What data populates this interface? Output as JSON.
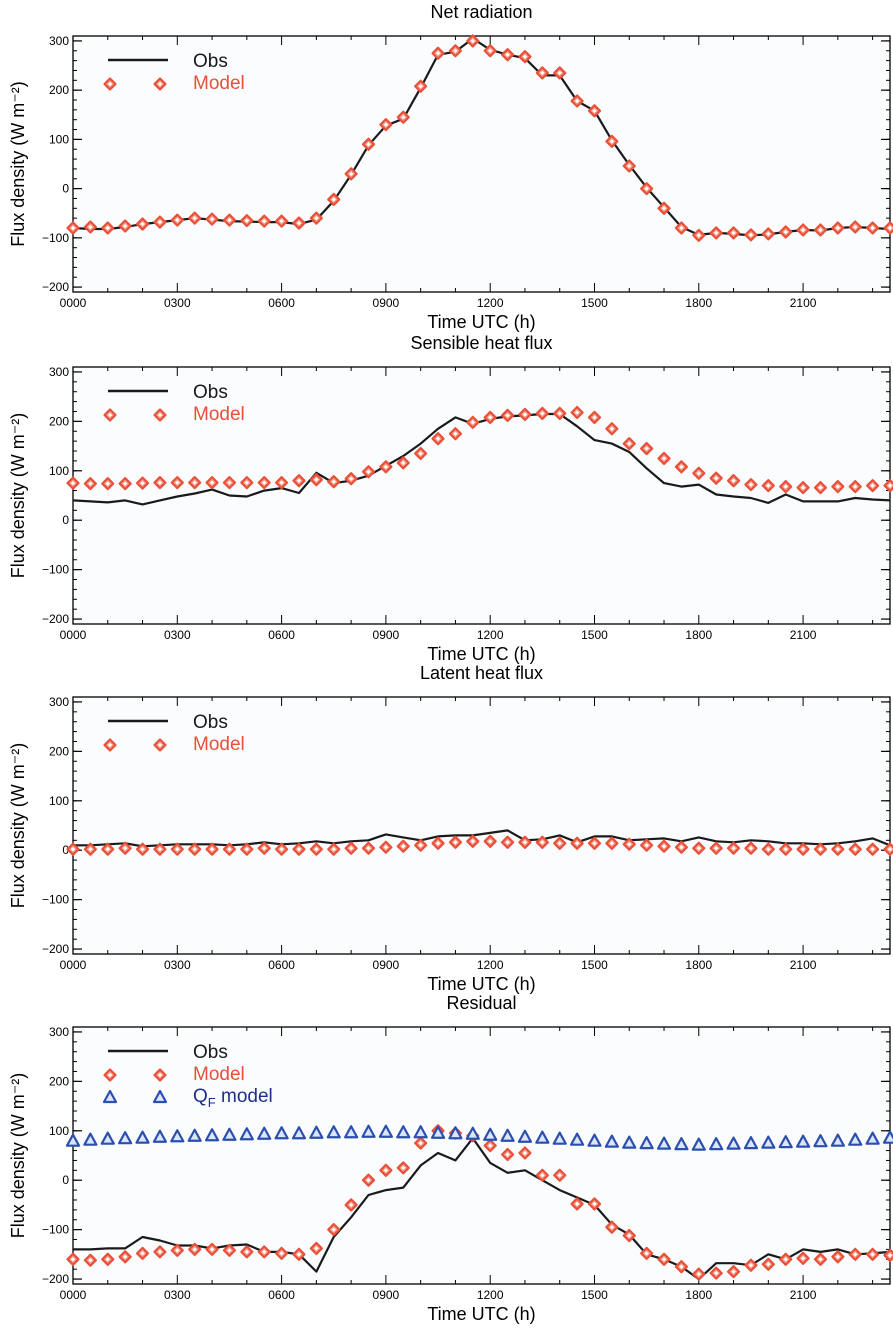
{
  "colors": {
    "obs": "#1a1a1a",
    "model": "#e8503a",
    "qf": "#2b4fae",
    "qf_text": "#1f2f8a",
    "plot_bg": "#fbfcfe",
    "axis": "#000000"
  },
  "chart_data": [
    {
      "type": "line",
      "title": "Net radiation",
      "xlabel": "Time UTC (h)",
      "ylabel": "Flux density (W m⁻²)",
      "ylim": [
        -210,
        310
      ],
      "xlim": [
        0,
        23.5
      ],
      "xtick_values": [
        0,
        3,
        6,
        9,
        12,
        15,
        18,
        21
      ],
      "xtick_labels": [
        "0000",
        "0300",
        "0600",
        "0900",
        "1200",
        "1500",
        "1800",
        "2100"
      ],
      "ytick_values": [
        -200,
        -100,
        0,
        100,
        200,
        300
      ],
      "ytick_labels": [
        "−200",
        "−100",
        "0",
        "100",
        "200",
        "300"
      ],
      "legend": {
        "position": "top-left",
        "entries": [
          "Obs",
          "Model"
        ]
      },
      "series": [
        {
          "name": "Obs",
          "style": "line",
          "x": [
            0,
            0.5,
            1,
            1.5,
            2,
            2.5,
            3,
            3.5,
            4,
            4.5,
            5,
            5.5,
            6,
            6.5,
            7,
            7.5,
            8,
            8.5,
            9,
            9.5,
            10,
            10.5,
            11,
            11.5,
            12,
            12.5,
            13,
            13.5,
            14,
            14.5,
            15,
            15.5,
            16,
            16.5,
            17,
            17.5,
            18,
            18.5,
            19,
            19.5,
            20,
            20.5,
            21,
            21.5,
            22,
            22.5,
            23,
            23.5
          ],
          "values": [
            -80,
            -82,
            -82,
            -78,
            -72,
            -68,
            -64,
            -60,
            -63,
            -66,
            -67,
            -68,
            -68,
            -72,
            -63,
            -25,
            28,
            88,
            128,
            142,
            205,
            272,
            278,
            305,
            282,
            272,
            265,
            230,
            230,
            178,
            158,
            98,
            48,
            2,
            -38,
            -78,
            -94,
            -90,
            -92,
            -95,
            -93,
            -88,
            -84,
            -85,
            -80,
            -78,
            -80,
            -82
          ]
        },
        {
          "name": "Model",
          "style": "markers",
          "x": [
            0,
            0.5,
            1,
            1.5,
            2,
            2.5,
            3,
            3.5,
            4,
            4.5,
            5,
            5.5,
            6,
            6.5,
            7,
            7.5,
            8,
            8.5,
            9,
            9.5,
            10,
            10.5,
            11,
            11.5,
            12,
            12.5,
            13,
            13.5,
            14,
            14.5,
            15,
            15.5,
            16,
            16.5,
            17,
            17.5,
            18,
            18.5,
            19,
            19.5,
            20,
            20.5,
            21,
            21.5,
            22,
            22.5,
            23,
            23.5
          ],
          "values": [
            -80,
            -78,
            -80,
            -76,
            -72,
            -68,
            -64,
            -60,
            -62,
            -64,
            -65,
            -66,
            -66,
            -70,
            -60,
            -22,
            30,
            90,
            130,
            145,
            208,
            275,
            280,
            300,
            280,
            272,
            268,
            235,
            235,
            178,
            158,
            96,
            46,
            0,
            -40,
            -80,
            -95,
            -90,
            -90,
            -94,
            -92,
            -88,
            -84,
            -84,
            -80,
            -78,
            -80,
            -80
          ]
        }
      ]
    },
    {
      "type": "line",
      "title": "Sensible heat flux",
      "xlabel": "Time UTC (h)",
      "ylabel": "Flux density (W m⁻²)",
      "ylim": [
        -210,
        310
      ],
      "xlim": [
        0,
        23.5
      ],
      "xtick_values": [
        0,
        3,
        6,
        9,
        12,
        15,
        18,
        21
      ],
      "xtick_labels": [
        "0000",
        "0300",
        "0600",
        "0900",
        "1200",
        "1500",
        "1800",
        "2100"
      ],
      "ytick_values": [
        -200,
        -100,
        0,
        100,
        200,
        300
      ],
      "ytick_labels": [
        "−200",
        "−100",
        "0",
        "100",
        "200",
        "300"
      ],
      "legend": {
        "position": "top-left",
        "entries": [
          "Obs",
          "Model"
        ]
      },
      "series": [
        {
          "name": "Obs",
          "style": "line",
          "x": [
            0,
            0.5,
            1,
            1.5,
            2,
            2.5,
            3,
            3.5,
            4,
            4.5,
            5,
            5.5,
            6,
            6.5,
            7,
            7.5,
            8,
            8.5,
            9,
            9.5,
            10,
            10.5,
            11,
            11.5,
            12,
            12.5,
            13,
            13.5,
            14,
            14.5,
            15,
            15.5,
            16,
            16.5,
            17,
            17.5,
            18,
            18.5,
            19,
            19.5,
            20,
            20.5,
            21,
            21.5,
            22,
            22.5,
            23,
            23.5
          ],
          "values": [
            40,
            38,
            36,
            40,
            32,
            40,
            48,
            54,
            62,
            50,
            48,
            60,
            65,
            55,
            96,
            75,
            80,
            90,
            110,
            130,
            155,
            185,
            208,
            195,
            205,
            210,
            212,
            215,
            215,
            190,
            162,
            155,
            138,
            105,
            75,
            68,
            72,
            52,
            48,
            45,
            35,
            52,
            38,
            38,
            38,
            45,
            42,
            40
          ]
        },
        {
          "name": "Model",
          "style": "markers",
          "x": [
            0,
            0.5,
            1,
            1.5,
            2,
            2.5,
            3,
            3.5,
            4,
            4.5,
            5,
            5.5,
            6,
            6.5,
            7,
            7.5,
            8,
            8.5,
            9,
            9.5,
            10,
            10.5,
            11,
            11.5,
            12,
            12.5,
            13,
            13.5,
            14,
            14.5,
            15,
            15.5,
            16,
            16.5,
            17,
            17.5,
            18,
            18.5,
            19,
            19.5,
            20,
            20.5,
            21,
            21.5,
            22,
            22.5,
            23,
            23.5
          ],
          "values": [
            75,
            74,
            74,
            74,
            75,
            76,
            76,
            76,
            76,
            76,
            76,
            76,
            76,
            80,
            82,
            78,
            84,
            98,
            108,
            116,
            135,
            165,
            175,
            198,
            208,
            212,
            214,
            216,
            216,
            218,
            208,
            185,
            155,
            145,
            125,
            108,
            95,
            85,
            80,
            72,
            70,
            68,
            66,
            66,
            68,
            68,
            70,
            70
          ]
        }
      ]
    },
    {
      "type": "line",
      "title": "Latent heat flux",
      "xlabel": "Time UTC (h)",
      "ylabel": "Flux density (W m⁻²)",
      "ylim": [
        -210,
        310
      ],
      "xlim": [
        0,
        23.5
      ],
      "xtick_values": [
        0,
        3,
        6,
        9,
        12,
        15,
        18,
        21
      ],
      "xtick_labels": [
        "0000",
        "0300",
        "0600",
        "0900",
        "1200",
        "1500",
        "1800",
        "2100"
      ],
      "ytick_values": [
        -200,
        -100,
        0,
        100,
        200,
        300
      ],
      "ytick_labels": [
        "−200",
        "−100",
        "0",
        "100",
        "200",
        "300"
      ],
      "legend": {
        "position": "top-left",
        "entries": [
          "Obs",
          "Model"
        ]
      },
      "series": [
        {
          "name": "Obs",
          "style": "line",
          "x": [
            0,
            0.5,
            1,
            1.5,
            2,
            2.5,
            3,
            3.5,
            4,
            4.5,
            5,
            5.5,
            6,
            6.5,
            7,
            7.5,
            8,
            8.5,
            9,
            9.5,
            10,
            10.5,
            11,
            11.5,
            12,
            12.5,
            13,
            13.5,
            14,
            14.5,
            15,
            15.5,
            16,
            16.5,
            17,
            17.5,
            18,
            18.5,
            19,
            19.5,
            20,
            20.5,
            21,
            21.5,
            22,
            22.5,
            23,
            23.5
          ],
          "values": [
            10,
            10,
            12,
            14,
            8,
            10,
            12,
            12,
            12,
            10,
            12,
            16,
            12,
            14,
            18,
            14,
            18,
            20,
            32,
            26,
            20,
            28,
            30,
            30,
            35,
            40,
            20,
            22,
            30,
            16,
            28,
            28,
            20,
            22,
            24,
            18,
            26,
            18,
            16,
            20,
            18,
            14,
            14,
            12,
            14,
            18,
            24,
            10
          ]
        },
        {
          "name": "Model",
          "style": "markers",
          "x": [
            0,
            0.5,
            1,
            1.5,
            2,
            2.5,
            3,
            3.5,
            4,
            4.5,
            5,
            5.5,
            6,
            6.5,
            7,
            7.5,
            8,
            8.5,
            9,
            9.5,
            10,
            10.5,
            11,
            11.5,
            12,
            12.5,
            13,
            13.5,
            14,
            14.5,
            15,
            15.5,
            16,
            16.5,
            17,
            17.5,
            18,
            18.5,
            19,
            19.5,
            20,
            20.5,
            21,
            21.5,
            22,
            22.5,
            23,
            23.5
          ],
          "values": [
            2,
            2,
            2,
            4,
            2,
            2,
            2,
            2,
            2,
            2,
            2,
            4,
            2,
            2,
            2,
            2,
            4,
            4,
            6,
            8,
            10,
            14,
            16,
            18,
            18,
            16,
            16,
            16,
            14,
            14,
            14,
            14,
            12,
            10,
            8,
            6,
            4,
            4,
            4,
            4,
            2,
            2,
            2,
            2,
            2,
            2,
            2,
            2
          ]
        }
      ]
    },
    {
      "type": "line",
      "title": "Residual",
      "xlabel": "Time UTC (h)",
      "ylabel": "Flux density (W m⁻²)",
      "ylim": [
        -210,
        310
      ],
      "xlim": [
        0,
        23.5
      ],
      "xtick_values": [
        0,
        3,
        6,
        9,
        12,
        15,
        18,
        21
      ],
      "xtick_labels": [
        "0000",
        "0300",
        "0600",
        "0900",
        "1200",
        "1500",
        "1800",
        "2100"
      ],
      "ytick_values": [
        -200,
        -100,
        0,
        100,
        200,
        300
      ],
      "ytick_labels": [
        "−200",
        "−100",
        "0",
        "100",
        "200",
        "300"
      ],
      "legend": {
        "position": "top-left",
        "entries": [
          "Obs",
          "Model",
          "Q_F model"
        ]
      },
      "series": [
        {
          "name": "Obs",
          "style": "line",
          "x": [
            0,
            0.5,
            1,
            1.5,
            2,
            2.5,
            3,
            3.5,
            4,
            4.5,
            5,
            5.5,
            6,
            6.5,
            7,
            7.5,
            8,
            8.5,
            9,
            9.5,
            10,
            10.5,
            11,
            11.5,
            12,
            12.5,
            13,
            13.5,
            14,
            14.5,
            15,
            15.5,
            16,
            16.5,
            17,
            17.5,
            18,
            18.5,
            19,
            19.5,
            20,
            20.5,
            21,
            21.5,
            22,
            22.5,
            23,
            23.5
          ],
          "values": [
            -140,
            -140,
            -138,
            -138,
            -115,
            -122,
            -132,
            -132,
            -138,
            -132,
            -130,
            -145,
            -145,
            -150,
            -185,
            -115,
            -75,
            -30,
            -20,
            -15,
            30,
            55,
            40,
            85,
            35,
            15,
            20,
            0,
            -20,
            -35,
            -50,
            -90,
            -110,
            -150,
            -160,
            -175,
            -200,
            -168,
            -168,
            -172,
            -150,
            -160,
            -140,
            -145,
            -140,
            -150,
            -148,
            -145
          ]
        },
        {
          "name": "Model",
          "style": "markers",
          "x": [
            0,
            0.5,
            1,
            1.5,
            2,
            2.5,
            3,
            3.5,
            4,
            4.5,
            5,
            5.5,
            6,
            6.5,
            7,
            7.5,
            8,
            8.5,
            9,
            9.5,
            10,
            10.5,
            11,
            11.5,
            12,
            12.5,
            13,
            13.5,
            14,
            14.5,
            15,
            15.5,
            16,
            16.5,
            17,
            17.5,
            18,
            18.5,
            19,
            19.5,
            20,
            20.5,
            21,
            21.5,
            22,
            22.5,
            23,
            23.5
          ],
          "values": [
            -160,
            -162,
            -160,
            -155,
            -148,
            -145,
            -142,
            -140,
            -140,
            -142,
            -145,
            -145,
            -148,
            -150,
            -138,
            -100,
            -50,
            0,
            20,
            25,
            75,
            100,
            95,
            90,
            70,
            52,
            55,
            10,
            10,
            -48,
            -48,
            -95,
            -112,
            -148,
            -160,
            -175,
            -190,
            -188,
            -185,
            -172,
            -170,
            -160,
            -158,
            -160,
            -155,
            -150,
            -150,
            -152
          ]
        },
        {
          "name": "Q_F model",
          "style": "triangles",
          "x": [
            0,
            0.5,
            1,
            1.5,
            2,
            2.5,
            3,
            3.5,
            4,
            4.5,
            5,
            5.5,
            6,
            6.5,
            7,
            7.5,
            8,
            8.5,
            9,
            9.5,
            10,
            10.5,
            11,
            11.5,
            12,
            12.5,
            13,
            13.5,
            14,
            14.5,
            15,
            15.5,
            16,
            16.5,
            17,
            17.5,
            18,
            18.5,
            19,
            19.5,
            20,
            20.5,
            21,
            21.5,
            22,
            22.5,
            23,
            23.5
          ],
          "values": [
            80,
            82,
            84,
            85,
            86,
            88,
            89,
            90,
            91,
            92,
            93,
            94,
            95,
            95,
            96,
            97,
            97,
            98,
            98,
            97,
            97,
            96,
            95,
            94,
            92,
            90,
            88,
            86,
            84,
            82,
            80,
            78,
            76,
            75,
            74,
            73,
            72,
            73,
            74,
            75,
            76,
            77,
            78,
            79,
            80,
            82,
            84,
            86
          ]
        }
      ]
    }
  ]
}
